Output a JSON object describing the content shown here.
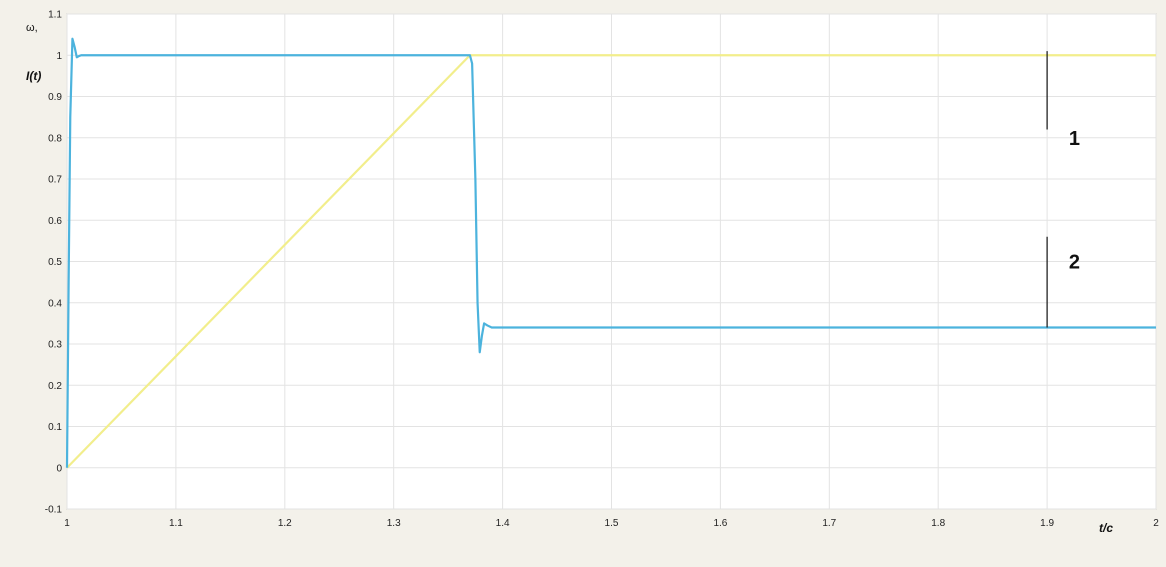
{
  "chart_data": {
    "type": "line",
    "title": "",
    "ylabel_line1": "ω,",
    "ylabel_line2": "I(t)",
    "xlabel": "t/c",
    "xlim": [
      1,
      2
    ],
    "ylim": [
      -0.1,
      1.1
    ],
    "x_ticks": [
      "1",
      "1.1",
      "1.2",
      "1.3",
      "1.4",
      "1.5",
      "1.6",
      "1.7",
      "1.8",
      "1.9",
      "2"
    ],
    "y_ticks": [
      "-0.1",
      "0",
      "0.1",
      "0.2",
      "0.3",
      "0.4",
      "0.5",
      "0.6",
      "0.7",
      "0.8",
      "0.9",
      "1",
      "1.1"
    ],
    "grid": true,
    "legend": "none",
    "series": [
      {
        "color": "#4cb3dd",
        "x": [
          1.0,
          1.0015,
          1.003,
          1.005,
          1.007,
          1.009,
          1.011,
          1.013,
          1.015,
          1.02,
          1.37,
          1.372,
          1.375,
          1.377,
          1.379,
          1.381,
          1.383,
          1.386,
          1.39,
          1.395,
          1.4,
          2.0
        ],
        "y": [
          0.0,
          0.45,
          0.85,
          1.04,
          1.02,
          0.995,
          0.998,
          1.0,
          1.0,
          1.0,
          1.0,
          0.98,
          0.7,
          0.4,
          0.28,
          0.32,
          0.35,
          0.345,
          0.34,
          0.34,
          0.34,
          0.34
        ]
      },
      {
        "color": "#f2ee8c",
        "x": [
          1.0,
          1.37,
          2.0
        ],
        "y": [
          0.0,
          1.0,
          1.0
        ]
      }
    ],
    "annotations": [
      {
        "text": "1",
        "x": 1.92,
        "y": 0.8,
        "line_x": 1.9,
        "line_y": [
          0.82,
          1.01
        ]
      },
      {
        "text": "2",
        "x": 1.92,
        "y": 0.5,
        "line_x": 1.9,
        "line_y": [
          0.34,
          0.56
        ]
      }
    ]
  }
}
